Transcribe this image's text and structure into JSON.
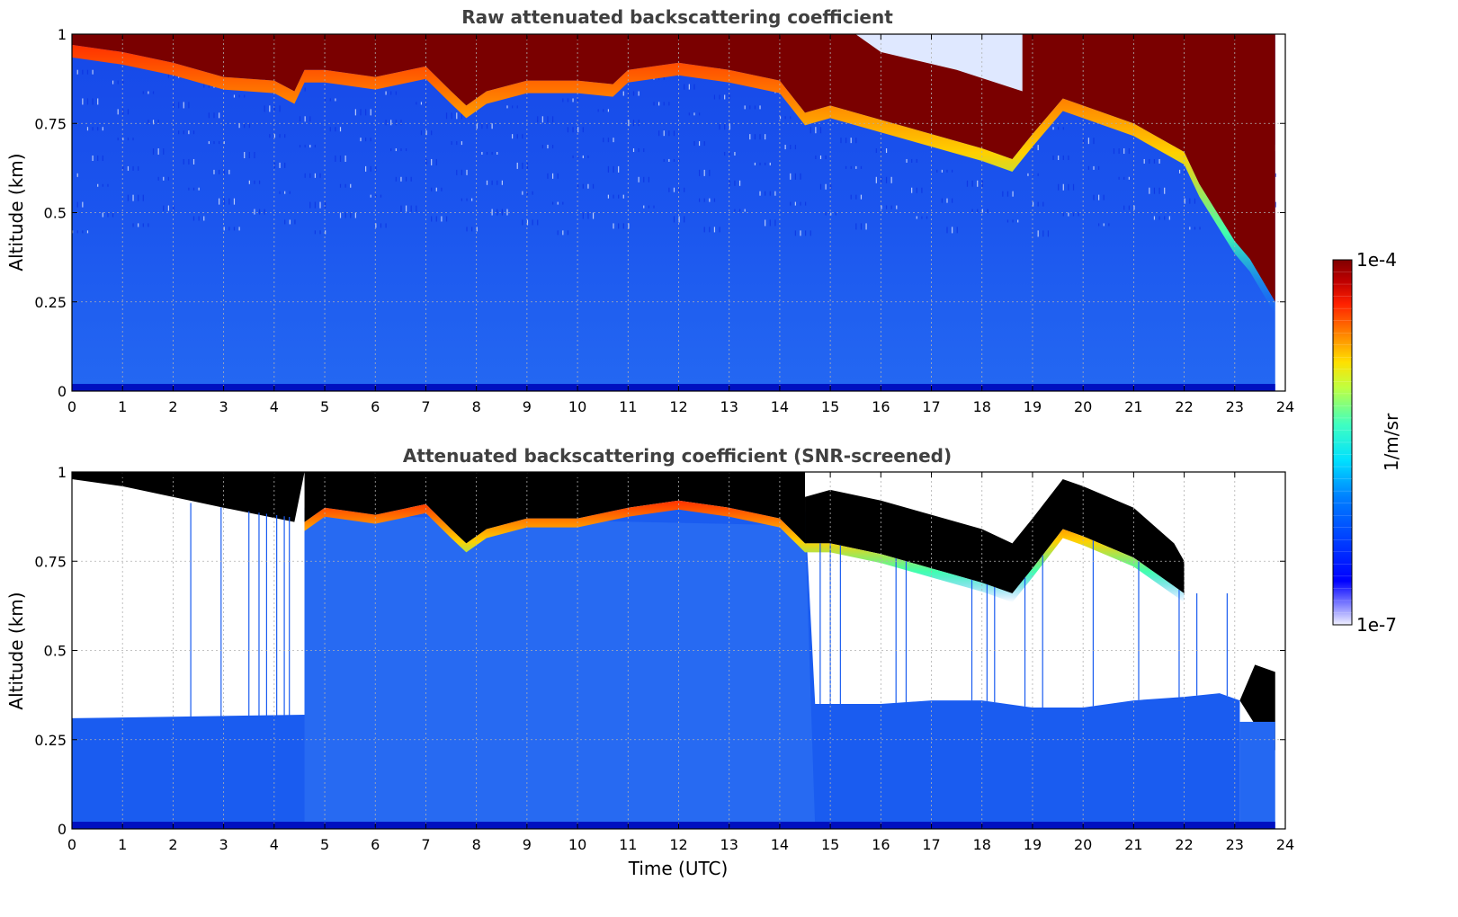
{
  "chart_data": [
    {
      "type": "heatmap",
      "title": "Raw attenuated backscattering coefficient",
      "xlabel": "",
      "ylabel": "Altitude (km)",
      "xlim": [
        0,
        24
      ],
      "ylim": [
        0,
        1
      ],
      "xticks": [
        "0",
        "1",
        "2",
        "3",
        "4",
        "5",
        "6",
        "7",
        "8",
        "9",
        "10",
        "11",
        "12",
        "13",
        "14",
        "15",
        "16",
        "17",
        "18",
        "19",
        "20",
        "21",
        "22",
        "23",
        "24"
      ],
      "yticks": [
        "0",
        "0.25",
        "0.5",
        "0.75",
        "1"
      ],
      "grid": true,
      "data_end_hour": 23.8,
      "cloud_base_km": [
        [
          0,
          0.97
        ],
        [
          1,
          0.95
        ],
        [
          2,
          0.92
        ],
        [
          3,
          0.88
        ],
        [
          4,
          0.87
        ],
        [
          4.4,
          0.84
        ],
        [
          4.6,
          0.9
        ],
        [
          5,
          0.9
        ],
        [
          6,
          0.88
        ],
        [
          7,
          0.91
        ],
        [
          7.5,
          0.84
        ],
        [
          7.8,
          0.8
        ],
        [
          8.2,
          0.84
        ],
        [
          9,
          0.87
        ],
        [
          10,
          0.87
        ],
        [
          10.7,
          0.86
        ],
        [
          11,
          0.9
        ],
        [
          12,
          0.92
        ],
        [
          13,
          0.9
        ],
        [
          14,
          0.87
        ],
        [
          14.5,
          0.78
        ],
        [
          15,
          0.8
        ],
        [
          16,
          0.76
        ],
        [
          17,
          0.72
        ],
        [
          18,
          0.68
        ],
        [
          18.6,
          0.65
        ],
        [
          19,
          0.72
        ],
        [
          19.6,
          0.82
        ],
        [
          20,
          0.8
        ],
        [
          21,
          0.75
        ],
        [
          22,
          0.67
        ],
        [
          22.3,
          0.58
        ],
        [
          23,
          0.42
        ],
        [
          23.3,
          0.37
        ],
        [
          23.8,
          0.25
        ]
      ]
    },
    {
      "type": "heatmap",
      "title": "Attenuated backscattering coefficient (SNR-screened)",
      "xlabel": "Time (UTC)",
      "ylabel": "Altitude (km)",
      "xlim": [
        0,
        24
      ],
      "ylim": [
        0,
        1
      ],
      "xticks": [
        "0",
        "1",
        "2",
        "3",
        "4",
        "5",
        "6",
        "7",
        "8",
        "9",
        "10",
        "11",
        "12",
        "13",
        "14",
        "15",
        "16",
        "17",
        "18",
        "19",
        "20",
        "21",
        "22",
        "23",
        "24"
      ],
      "yticks": [
        "0",
        "0.25",
        "0.5",
        "0.75",
        "1"
      ],
      "grid": true,
      "data_end_hour": 23.8,
      "screened_top_km": [
        [
          0,
          0.31
        ],
        [
          4.6,
          0.32
        ],
        [
          4.6,
          0.9
        ],
        [
          14.5,
          0.9
        ],
        [
          14.7,
          0.35
        ],
        [
          16,
          0.35
        ],
        [
          17,
          0.36
        ],
        [
          18,
          0.36
        ],
        [
          19,
          0.34
        ],
        [
          20,
          0.34
        ],
        [
          21,
          0.36
        ],
        [
          22,
          0.37
        ],
        [
          22.7,
          0.38
        ],
        [
          23.1,
          0.36
        ]
      ],
      "cloud_base_km": [
        [
          4.6,
          0.86
        ],
        [
          5,
          0.9
        ],
        [
          6,
          0.88
        ],
        [
          7,
          0.91
        ],
        [
          7.5,
          0.84
        ],
        [
          7.8,
          0.8
        ],
        [
          8.2,
          0.84
        ],
        [
          9,
          0.87
        ],
        [
          10,
          0.87
        ],
        [
          11,
          0.9
        ],
        [
          12,
          0.92
        ],
        [
          13,
          0.9
        ],
        [
          14,
          0.87
        ],
        [
          14.5,
          0.8
        ],
        [
          15,
          0.8
        ],
        [
          16,
          0.77
        ],
        [
          17,
          0.73
        ],
        [
          18,
          0.69
        ],
        [
          18.6,
          0.66
        ],
        [
          19,
          0.73
        ],
        [
          19.6,
          0.84
        ],
        [
          20,
          0.82
        ],
        [
          21,
          0.76
        ],
        [
          21.8,
          0.68
        ],
        [
          22,
          0.66
        ]
      ],
      "cloud_top_km": [
        [
          14.5,
          0.93
        ],
        [
          15,
          0.95
        ],
        [
          16,
          0.92
        ],
        [
          17,
          0.88
        ],
        [
          18,
          0.84
        ],
        [
          18.6,
          0.8
        ],
        [
          19,
          0.87
        ],
        [
          19.6,
          0.98
        ],
        [
          20,
          0.96
        ],
        [
          21,
          0.9
        ],
        [
          21.8,
          0.8
        ],
        [
          22,
          0.75
        ]
      ]
    }
  ],
  "colorbar": {
    "label": "1/m/sr",
    "max_label": "1e-4",
    "min_label": "1e-7",
    "scale": "log",
    "colormap": "jet"
  },
  "colors": {
    "low_signal": "#1a5cf0",
    "clear_blue": "#2f7bf5",
    "cloud_core": "#7a0000",
    "cloud_saturated": "#000000",
    "text": "#404040"
  }
}
